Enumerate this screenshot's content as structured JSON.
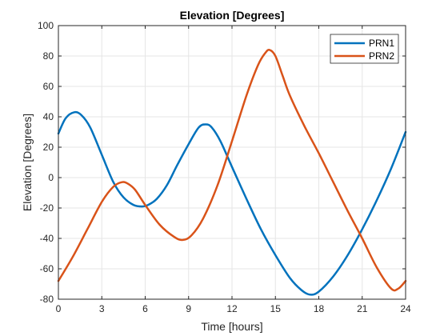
{
  "chart_data": {
    "type": "line",
    "title": "Elevation [Degrees]",
    "xlabel": "Time [hours]",
    "ylabel": "Elevation [Degrees]",
    "xlim": [
      0,
      24
    ],
    "ylim": [
      -80,
      100
    ],
    "xticks": [
      0,
      3,
      6,
      9,
      12,
      15,
      18,
      21,
      24
    ],
    "yticks": [
      -80,
      -60,
      -40,
      -20,
      0,
      20,
      40,
      60,
      80,
      100
    ],
    "grid": true,
    "legend_position": "top-right",
    "series": [
      {
        "name": "PRN1",
        "color": "#0072BD",
        "x": [
          0,
          0.5,
          1.1,
          1.6,
          2.2,
          3,
          3.8,
          4.5,
          5.2,
          5.8,
          6.2,
          6.8,
          7.5,
          8.2,
          9,
          9.7,
          10.2,
          10.6,
          11.2,
          12,
          13,
          14,
          15,
          16,
          16.8,
          17.4,
          18,
          19,
          20,
          21,
          22,
          23,
          24
        ],
        "y": [
          29,
          39,
          43,
          41,
          33,
          15,
          -3,
          -13,
          -18,
          -19,
          -18,
          -14,
          -5,
          8,
          22,
          33,
          35,
          33,
          24,
          7,
          -14,
          -34,
          -51,
          -66,
          -74,
          -77,
          -75,
          -65,
          -51,
          -34,
          -15,
          6,
          30
        ]
      },
      {
        "name": "PRN2",
        "color": "#D95319",
        "x": [
          0,
          1,
          2,
          3,
          3.8,
          4.4,
          4.8,
          5.3,
          6,
          7,
          8,
          8.6,
          9.2,
          10,
          11,
          12,
          13,
          13.8,
          14.3,
          14.6,
          15,
          15.5,
          16,
          17,
          18,
          19,
          20,
          21,
          22,
          23,
          23.5,
          24
        ],
        "y": [
          -68,
          -52,
          -34,
          -16,
          -6,
          -3,
          -4,
          -8,
          -18,
          -31,
          -39,
          -41,
          -38,
          -27,
          -5,
          24,
          54,
          74,
          82,
          84,
          80,
          67,
          54,
          34,
          16,
          -3,
          -22,
          -40,
          -59,
          -73,
          -73,
          -68
        ]
      }
    ]
  }
}
